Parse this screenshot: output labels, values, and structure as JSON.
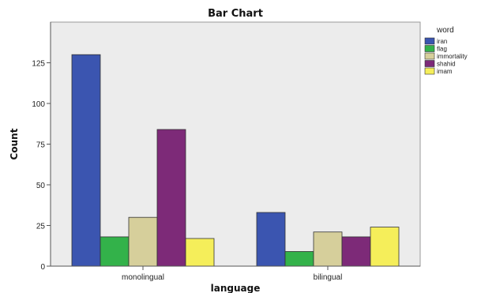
{
  "chart_data": {
    "type": "bar",
    "title": "Bar Chart",
    "xlabel": "language",
    "ylabel": "Count",
    "categories": [
      "monolingual",
      "bilingual"
    ],
    "series": [
      {
        "name": "iran",
        "color": "#3b55b0",
        "values": [
          130,
          33
        ]
      },
      {
        "name": "flag",
        "color": "#33b24a",
        "values": [
          18,
          9
        ]
      },
      {
        "name": "immortality",
        "color": "#d6cf9b",
        "values": [
          30,
          21
        ]
      },
      {
        "name": "shahid",
        "color": "#7d2a78",
        "values": [
          84,
          18
        ]
      },
      {
        "name": "imam",
        "color": "#f5ee5a",
        "values": [
          17,
          24
        ]
      }
    ],
    "ylim": [
      0,
      150
    ],
    "yticks": [
      0,
      25,
      50,
      75,
      100,
      125
    ],
    "legend_title": "word",
    "legend_position": "right",
    "plot_background": "#ececec",
    "grid": false
  }
}
